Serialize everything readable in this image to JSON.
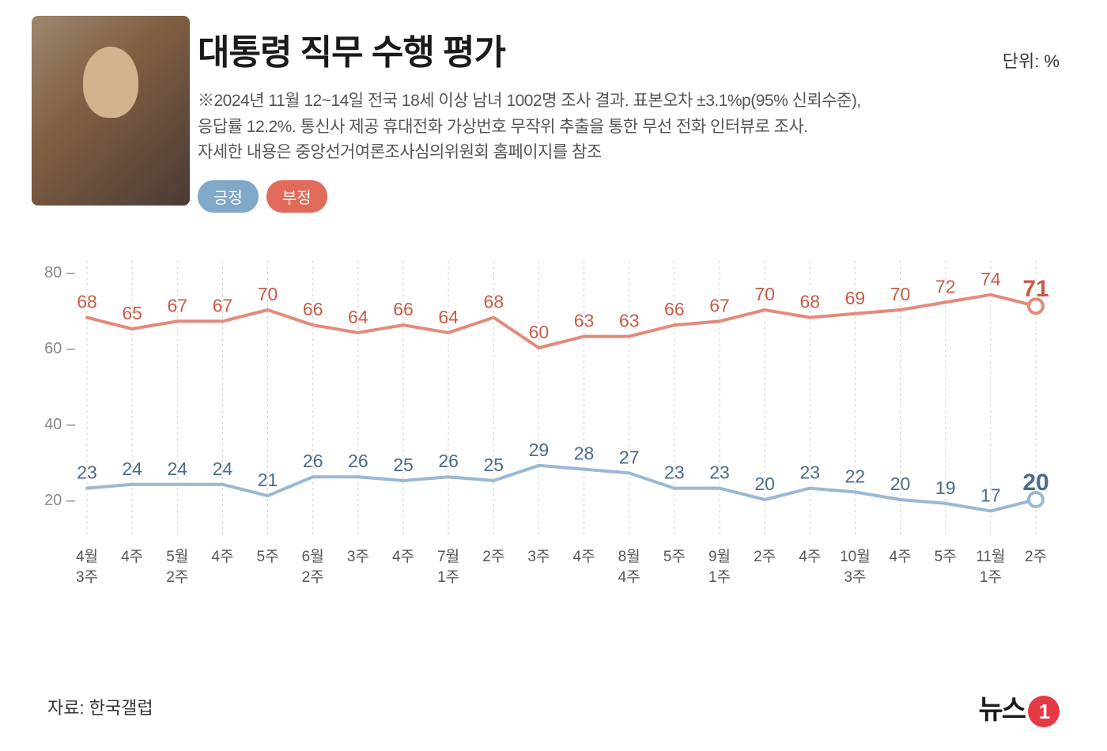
{
  "title": "대통령 직무 수행 평가",
  "unit_label": "단위: %",
  "subtitle_line1": "※2024년 11월 12~14일 전국 18세 이상 남녀 1002명 조사 결과. 표본오차 ±3.1%p(95% 신뢰수준),",
  "subtitle_line2": "응답률 12.2%. 통신사 제공 휴대전화 가상번호 무작위 추출을 통한 무선 전화 인터뷰로 조사.",
  "subtitle_line3": "자세한 내용은 중앙선거여론조사심의위원회 홈페이지를 참조",
  "legend": {
    "positive": {
      "label": "긍정",
      "color": "#7fa8c9"
    },
    "negative": {
      "label": "부정",
      "color": "#e06b5a"
    }
  },
  "chart": {
    "type": "line",
    "ylim": [
      10,
      85
    ],
    "yticks": [
      20,
      40,
      60,
      80
    ],
    "background_color": "#ffffff",
    "grid_color": "#d0d0d0",
    "line_width": 4,
    "marker_radius_end": 9,
    "x_labels": [
      [
        "4월",
        "3주"
      ],
      [
        "",
        "4주"
      ],
      [
        "5월",
        "2주"
      ],
      [
        "",
        "4주"
      ],
      [
        "",
        "5주"
      ],
      [
        "6월",
        "2주"
      ],
      [
        "",
        "3주"
      ],
      [
        "",
        "4주"
      ],
      [
        "7월",
        "1주"
      ],
      [
        "",
        "2주"
      ],
      [
        "",
        "3주"
      ],
      [
        "",
        "4주"
      ],
      [
        "8월",
        "4주"
      ],
      [
        "",
        "5주"
      ],
      [
        "9월",
        "1주"
      ],
      [
        "",
        "2주"
      ],
      [
        "",
        "4주"
      ],
      [
        "10월",
        "3주"
      ],
      [
        "",
        "4주"
      ],
      [
        "",
        "5주"
      ],
      [
        "11월",
        "1주"
      ],
      [
        "",
        "2주"
      ]
    ],
    "series": {
      "positive": {
        "color": "#9bb8d3",
        "text_color": "#4a6b8a",
        "values": [
          23,
          24,
          24,
          24,
          21,
          26,
          26,
          25,
          26,
          25,
          29,
          28,
          27,
          23,
          23,
          20,
          23,
          22,
          20,
          19,
          17,
          20
        ]
      },
      "negative": {
        "color": "#e48a7a",
        "text_color": "#c95b48",
        "values": [
          68,
          65,
          67,
          67,
          70,
          66,
          64,
          66,
          64,
          68,
          60,
          63,
          63,
          66,
          67,
          70,
          68,
          69,
          70,
          72,
          74,
          71
        ]
      }
    }
  },
  "source": "자료: 한국갤럽",
  "logo_text": "뉴스",
  "logo_one": "1"
}
